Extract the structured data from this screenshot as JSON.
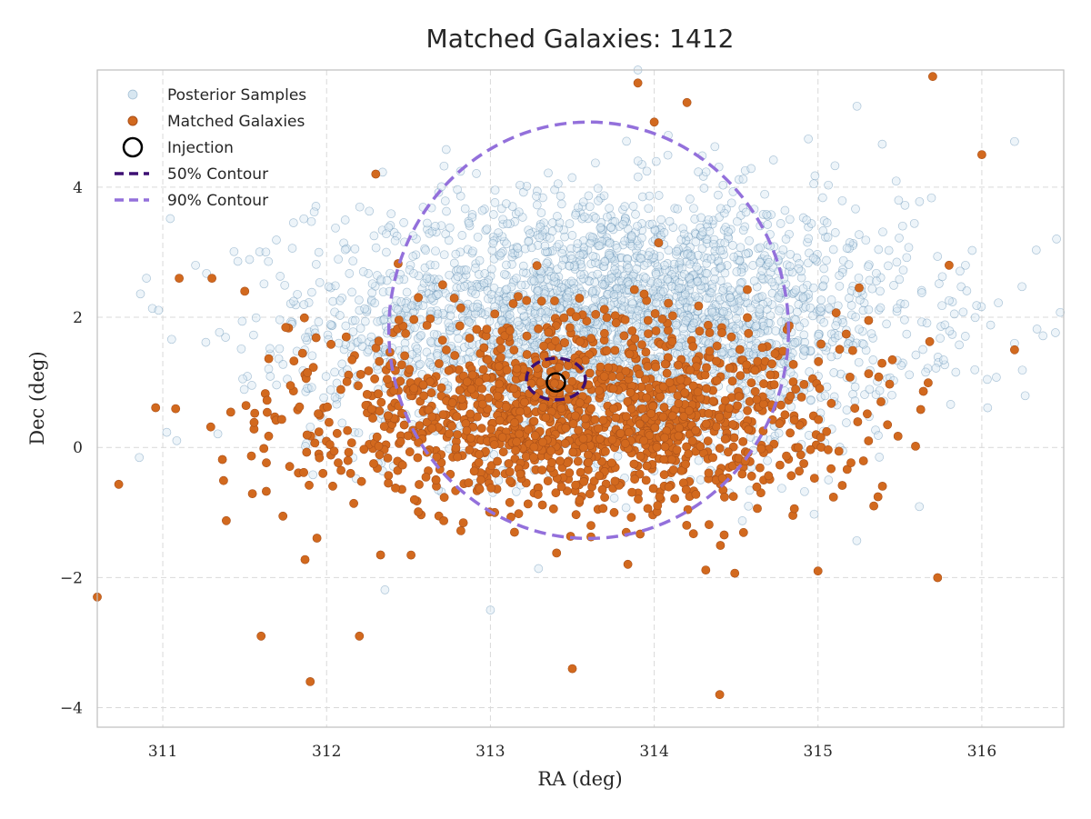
{
  "chart_data": {
    "type": "scatter",
    "title": "Matched Galaxies: 1412",
    "xlabel": "RA (deg)",
    "ylabel": "Dec (deg)",
    "xlim": [
      310.6,
      316.5
    ],
    "ylim": [
      -4.3,
      5.8
    ],
    "xticks": [
      311,
      312,
      313,
      314,
      315,
      316
    ],
    "yticks": [
      -4,
      -2,
      0,
      2,
      4
    ],
    "xtick_labels": [
      "311",
      "312",
      "313",
      "314",
      "315",
      "316"
    ],
    "ytick_labels": [
      "−4",
      "−2",
      "0",
      "2",
      "4"
    ],
    "grid": true,
    "legend_position": "top-left",
    "series": [
      {
        "name": "Posterior Samples",
        "kind": "scatter",
        "marker": "hollow-circle",
        "distribution": {
          "center": [
            313.75,
            1.9
          ],
          "spread": [
            1.2,
            1.3
          ],
          "n": 3000
        },
        "outlier_points": [
          [
            310.9,
            2.6
          ],
          [
            316.2,
            1.6
          ],
          [
            316.2,
            4.7
          ],
          [
            315.9,
            2.8
          ],
          [
            311.2,
            2.8
          ],
          [
            313.9,
            5.8
          ],
          [
            313.0,
            -2.5
          ]
        ]
      },
      {
        "name": "Matched Galaxies",
        "kind": "scatter",
        "marker": "filled-circle",
        "distribution": {
          "center": [
            313.5,
            0.5
          ],
          "spread": [
            1.1,
            1.0
          ],
          "n": 1412
        },
        "outlier_points": [
          [
            310.6,
            -2.3
          ],
          [
            311.1,
            2.6
          ],
          [
            311.3,
            2.6
          ],
          [
            311.5,
            2.4
          ],
          [
            315.7,
            5.7
          ],
          [
            316.0,
            4.5
          ],
          [
            316.2,
            1.5
          ],
          [
            313.9,
            5.6
          ],
          [
            314.2,
            5.3
          ],
          [
            314.0,
            5.0
          ],
          [
            314.4,
            -3.8
          ],
          [
            313.5,
            -3.4
          ],
          [
            311.6,
            -2.9
          ],
          [
            311.9,
            -3.6
          ],
          [
            312.2,
            -2.9
          ],
          [
            312.3,
            4.2
          ],
          [
            315.8,
            2.8
          ],
          [
            315.0,
            -1.9
          ]
        ]
      },
      {
        "name": "Injection",
        "kind": "marker",
        "x": 313.4,
        "y": 1.0
      },
      {
        "name": "50% Contour",
        "kind": "ellipse",
        "center": [
          313.4,
          1.05
        ],
        "radii": [
          0.18,
          0.32
        ]
      },
      {
        "name": "90% Contour",
        "kind": "ellipse",
        "center": [
          313.6,
          1.8
        ],
        "radii": [
          1.22,
          3.2
        ]
      }
    ],
    "colors": {
      "posterior_fill": "#d8e7f1",
      "posterior_edge": "#4f83ab",
      "matched": "#d2691e",
      "matched_edge": "#a9501a",
      "injection": "#000000",
      "contour_50": "#3d0f73",
      "contour_90": "#9370db",
      "grid": "#d9d9d9",
      "axes": "#bfbfbf"
    }
  }
}
